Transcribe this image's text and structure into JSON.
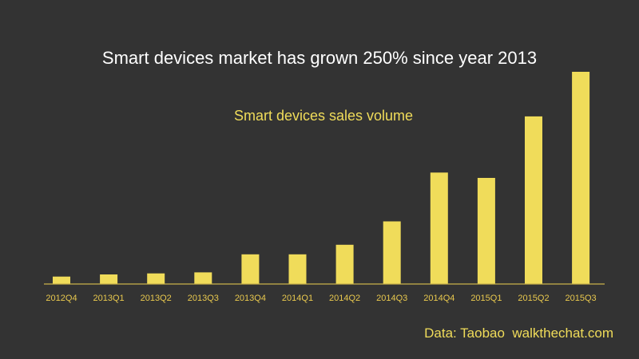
{
  "colors": {
    "background": "#333333",
    "title": "#ffffff",
    "accent": "#f0dc5a",
    "tick_label": "#e8c84e",
    "axis_line": "#c9b24a"
  },
  "source_note": "Data: Taobao  walkthechat.com",
  "chart_data": {
    "type": "bar",
    "title": "Smart devices market has grown 250% since year 2013",
    "subtitle": "Smart devices sales volume",
    "xlabel": "",
    "ylabel": "",
    "y_axis_visible": false,
    "grid": false,
    "legend": "none",
    "categories": [
      "2012Q4",
      "2013Q1",
      "2013Q2",
      "2013Q3",
      "2013Q4",
      "2014Q1",
      "2014Q2",
      "2014Q3",
      "2014Q4",
      "2015Q1",
      "2015Q2",
      "2015Q3"
    ],
    "values": [
      3.5,
      4.5,
      5,
      5.5,
      14,
      14,
      18.5,
      29.5,
      52.5,
      50,
      79,
      100
    ],
    "ylim": [
      0,
      100
    ]
  }
}
